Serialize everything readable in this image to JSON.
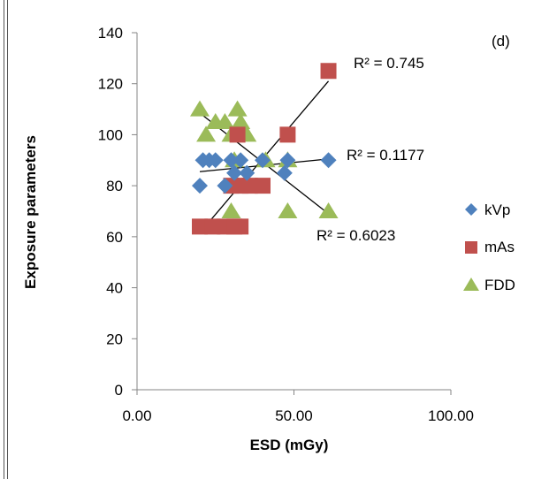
{
  "chart_data": {
    "type": "scatter",
    "title": "",
    "panel_label": "(d)",
    "xlabel": "ESD (mGy)",
    "ylabel": "Exposure parameters",
    "xlim": [
      0,
      100
    ],
    "ylim": [
      0,
      140
    ],
    "x_ticks": [
      "0.00",
      "50.00",
      "100.00"
    ],
    "x_tick_values": [
      0,
      50,
      100
    ],
    "y_ticks": [
      "0",
      "20",
      "40",
      "60",
      "80",
      "100",
      "120",
      "140"
    ],
    "y_tick_values": [
      0,
      20,
      40,
      60,
      80,
      100,
      120,
      140
    ],
    "grid": false,
    "legend_position": "right",
    "series": [
      {
        "name": "kVp",
        "marker": "diamond",
        "color": "#4f81bd",
        "points": [
          [
            20,
            80
          ],
          [
            21,
            90
          ],
          [
            23,
            90
          ],
          [
            25,
            90
          ],
          [
            28,
            80
          ],
          [
            30,
            90
          ],
          [
            31,
            85
          ],
          [
            33,
            90
          ],
          [
            35,
            85
          ],
          [
            40,
            90
          ],
          [
            47,
            85
          ],
          [
            48,
            90
          ],
          [
            61,
            90
          ]
        ],
        "trendline": {
          "x": [
            20,
            61
          ],
          "y": [
            85.5,
            90.5
          ],
          "r2_label": "R² = 0.1177"
        }
      },
      {
        "name": "mAs",
        "marker": "square",
        "color": "#c0504d",
        "points": [
          [
            20,
            64
          ],
          [
            24,
            64
          ],
          [
            28,
            64
          ],
          [
            31,
            64
          ],
          [
            33,
            64
          ],
          [
            30,
            80
          ],
          [
            33,
            80
          ],
          [
            36,
            80
          ],
          [
            40,
            80
          ],
          [
            32,
            100
          ],
          [
            48,
            100
          ],
          [
            61,
            125
          ]
        ],
        "trendline": {
          "x": [
            20,
            61
          ],
          "y": [
            61.5,
            121
          ],
          "r2_label": "R² = 0.745"
        }
      },
      {
        "name": "FDD",
        "marker": "triangle",
        "color": "#9bbb59",
        "points": [
          [
            20,
            110
          ],
          [
            22,
            100
          ],
          [
            25,
            105
          ],
          [
            28,
            105
          ],
          [
            30,
            100
          ],
          [
            32,
            110
          ],
          [
            33,
            105
          ],
          [
            35,
            100
          ],
          [
            31,
            90
          ],
          [
            41,
            90
          ],
          [
            48,
            90
          ],
          [
            30,
            70
          ],
          [
            48,
            70
          ],
          [
            61,
            70
          ]
        ],
        "trendline": {
          "x": [
            20,
            61
          ],
          "y": [
            108.5,
            69
          ],
          "r2_label": "R² = 0.6023"
        }
      }
    ]
  },
  "colors": {
    "axis": "#868686",
    "trendline": "#000000",
    "frame": "#555555"
  }
}
